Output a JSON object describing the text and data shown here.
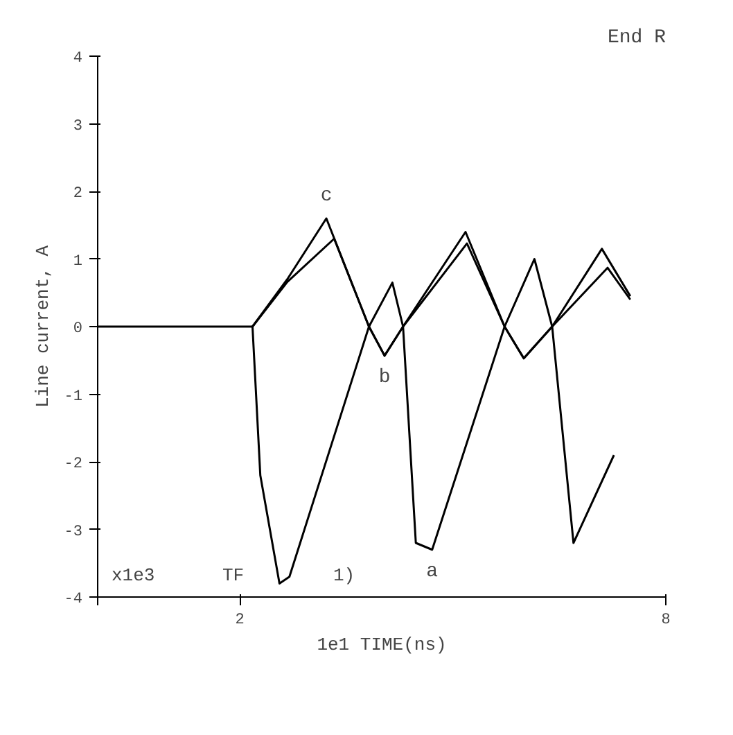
{
  "chart_data": {
    "type": "line",
    "title": "End R",
    "xlabel": "1e1 TIME(ns)",
    "ylabel": "Line current, A",
    "xlim": [
      0,
      8
    ],
    "xticks": [
      {
        "value": 0,
        "label": null
      },
      2,
      8
    ],
    "ylim": [
      -4,
      4
    ],
    "yticks": [
      -4,
      -3,
      -2,
      -1,
      0,
      1,
      2,
      3,
      4
    ],
    "grid": false,
    "marker": "none",
    "line_style": "solid",
    "series": [
      {
        "color": "#000000",
        "x": [
          0,
          2,
          2.18,
          2.29,
          2.56,
          2.7,
          3.82,
          4.15,
          4.3,
          4.48,
          4.71,
          5.73,
          6.15,
          6.4,
          6.7,
          7.27
        ],
        "values": [
          0,
          0,
          0,
          -2.2,
          -3.8,
          -3.7,
          0,
          0.65,
          0,
          -3.2,
          -3.3,
          0,
          1.0,
          0,
          -3.2,
          -1.9
        ]
      },
      {
        "color": "#000000",
        "x": [
          2.18,
          2.67,
          3.33,
          3.82,
          4.04,
          4.3,
          5.2,
          5.73,
          6.0,
          6.4,
          7.18,
          7.5
        ],
        "values": [
          0,
          0.66,
          1.3,
          0,
          -0.43,
          0,
          1.23,
          0,
          -0.47,
          0,
          0.87,
          0.4
        ]
      },
      {
        "color": "#000000",
        "x": [
          2.18,
          2.67,
          3.22,
          3.82,
          4.04,
          4.3,
          5.18,
          5.73,
          6.0,
          6.4,
          7.1,
          7.5
        ],
        "values": [
          0,
          0.7,
          1.6,
          0,
          -0.43,
          0,
          1.4,
          0,
          -0.47,
          0,
          1.15,
          0.45
        ]
      }
    ],
    "annotations": [
      {
        "text": "a",
        "x": 4.71,
        "y": -3.3
      },
      {
        "text": "b",
        "x": 4.04,
        "y": -0.43
      },
      {
        "text": "c",
        "x": 3.22,
        "y": 1.6
      },
      "x1e3",
      "TF",
      "1)"
    ]
  }
}
